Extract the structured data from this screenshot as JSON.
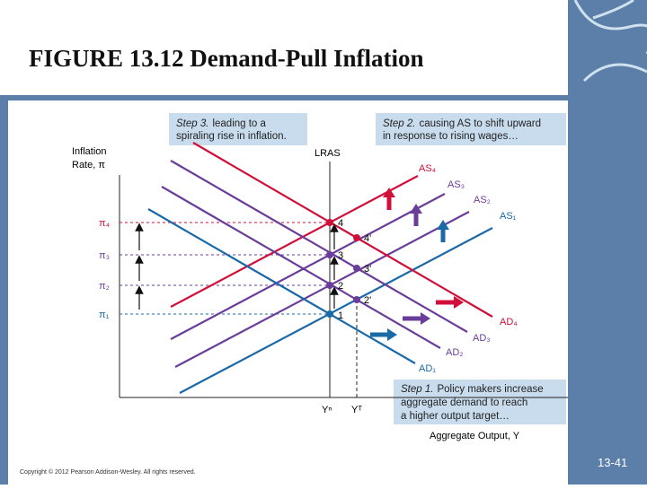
{
  "title": "FIGURE 13.12  Demand-Pull Inflation",
  "callouts": [
    {
      "step": "Step 3.",
      "lines": [
        "leading to a",
        "spiraling rise in inflation."
      ]
    },
    {
      "step": "Step 2.",
      "lines": [
        "causing AS to shift upward",
        "in response to rising wages…"
      ]
    },
    {
      "step": "Step 1.",
      "lines": [
        "Policy makers increase",
        "aggregate demand to reach",
        "a higher output target…"
      ]
    }
  ],
  "axes": {
    "y_label": [
      "Inflation",
      "Rate, π"
    ],
    "x_label": "Aggregate Output, Y",
    "lras": "LRAS",
    "yn": "Yⁿ",
    "yt": "Yᵀ"
  },
  "inflation_levels": [
    "π₄",
    "π₃",
    "π₂",
    "π₁"
  ],
  "as_curves": [
    "AS₁",
    "AS₂",
    "AS₃",
    "AS₄"
  ],
  "ad_curves": [
    "AD₁",
    "AD₂",
    "AD₃",
    "AD₄"
  ],
  "points": [
    "1",
    "2",
    "3",
    "4",
    "2'",
    "3'",
    "4'"
  ],
  "footer": {
    "copyright": "Copyright © 2012 Pearson Addison-Wesley. All rights reserved.",
    "page": "13-41"
  }
}
